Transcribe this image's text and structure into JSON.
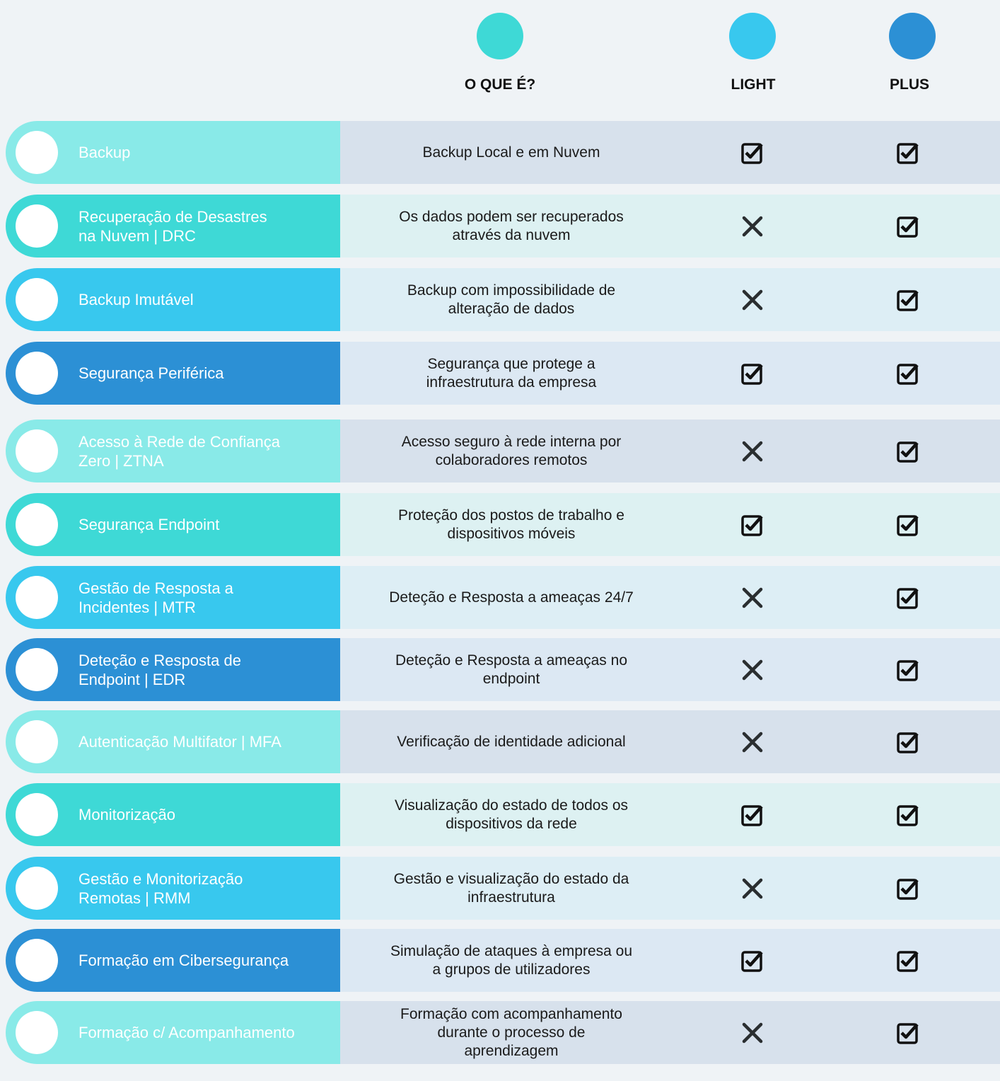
{
  "colors": {
    "c1": "#89EAE8",
    "c2": "#3ED9D6",
    "c3": "#38C8EE",
    "c4": "#2C90D5",
    "bg1": "#D7E1EC",
    "bg2": "#DDF1F2",
    "bg3": "#DDEEF5",
    "bg4": "#DCE8F3"
  },
  "header": {
    "what": "O QUE É?",
    "light": "LIGHT",
    "plus": "PLUS"
  },
  "rows": [
    {
      "feature": "Backup",
      "description": "Backup Local e em Nuvem",
      "light": "check",
      "plus": "check"
    },
    {
      "feature": "Recuperação de Desastres\nna Nuvem | DRC",
      "description": "Os dados podem ser recuperados\natravés da nuvem",
      "light": "cross",
      "plus": "check"
    },
    {
      "feature": "Backup Imutável",
      "description": "Backup com impossibilidade de\nalteração de dados",
      "light": "cross",
      "plus": "check"
    },
    {
      "feature": "Segurança Periférica",
      "description": "Segurança que protege a\ninfraestrutura da empresa",
      "light": "check",
      "plus": "check"
    },
    {
      "feature": "Acesso à Rede de Confiança\nZero | ZTNA",
      "description": "Acesso seguro à rede interna por\ncolaboradores remotos",
      "light": "cross",
      "plus": "check"
    },
    {
      "feature": "Segurança Endpoint",
      "description": "Proteção dos postos de trabalho e\ndispositivos móveis",
      "light": "check",
      "plus": "check"
    },
    {
      "feature": "Gestão de Resposta a\nIncidentes | MTR",
      "description": "Deteção e Resposta a ameaças 24/7",
      "light": "cross",
      "plus": "check"
    },
    {
      "feature": "Deteção e Resposta de\nEndpoint | EDR",
      "description": "Deteção e Resposta a ameaças no\nendpoint",
      "light": "cross",
      "plus": "check"
    },
    {
      "feature": "Autenticação Multifator | MFA",
      "description": "Verificação de identidade adicional",
      "light": "cross",
      "plus": "check"
    },
    {
      "feature": "Monitorização",
      "description": "Visualização do estado de todos os\ndispositivos da rede",
      "light": "check",
      "plus": "check"
    },
    {
      "feature": "Gestão e Monitorização\nRemotas | RMM",
      "description": "Gestão e visualização do estado da\ninfraestrutura",
      "light": "cross",
      "plus": "check"
    },
    {
      "feature": "Formação em Cibersegurança",
      "description": "Simulação de ataques à empresa ou\na grupos de utilizadores",
      "light": "check",
      "plus": "check"
    },
    {
      "feature": "Formação c/ Acompanhamento",
      "description": "Formação com acompanhamento\ndurante o processo de\naprendizagem",
      "light": "cross",
      "plus": "check"
    }
  ]
}
